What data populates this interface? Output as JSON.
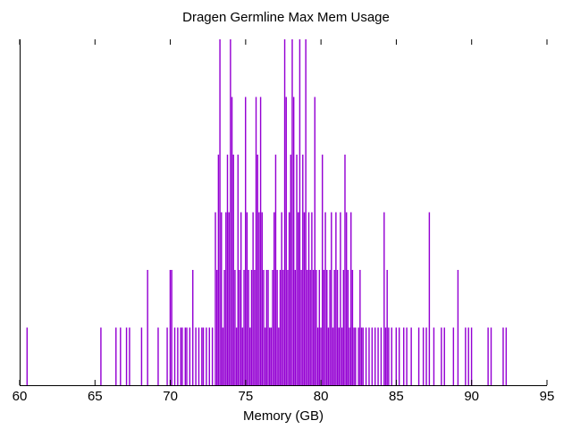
{
  "chart_data": {
    "type": "bar",
    "title": "Dragen Germline Max Mem Usage",
    "xlabel": "Memory (GB)",
    "ylabel": "",
    "xlim": [
      60,
      95
    ],
    "ylim": [
      0,
      6
    ],
    "xticks": [
      "60",
      "65",
      "70",
      "75",
      "80",
      "85",
      "90",
      "95"
    ],
    "grid": false,
    "legend": "none",
    "bar_color": "#9400d3",
    "bin_width_gb": 0.1,
    "bars": [
      {
        "x": 60.5,
        "y": 1
      },
      {
        "x": 65.4,
        "y": 1
      },
      {
        "x": 66.4,
        "y": 1
      },
      {
        "x": 66.7,
        "y": 1
      },
      {
        "x": 67.1,
        "y": 1
      },
      {
        "x": 67.3,
        "y": 1
      },
      {
        "x": 68.1,
        "y": 1
      },
      {
        "x": 68.5,
        "y": 2
      },
      {
        "x": 69.2,
        "y": 1
      },
      {
        "x": 69.8,
        "y": 1
      },
      {
        "x": 70.0,
        "y": 2
      },
      {
        "x": 70.1,
        "y": 2
      },
      {
        "x": 70.3,
        "y": 1
      },
      {
        "x": 70.5,
        "y": 1
      },
      {
        "x": 70.7,
        "y": 1
      },
      {
        "x": 70.8,
        "y": 1
      },
      {
        "x": 71.0,
        "y": 1
      },
      {
        "x": 71.1,
        "y": 1
      },
      {
        "x": 71.3,
        "y": 1
      },
      {
        "x": 71.5,
        "y": 2
      },
      {
        "x": 71.7,
        "y": 1
      },
      {
        "x": 71.9,
        "y": 1
      },
      {
        "x": 72.1,
        "y": 1
      },
      {
        "x": 72.2,
        "y": 1
      },
      {
        "x": 72.4,
        "y": 1
      },
      {
        "x": 72.6,
        "y": 1
      },
      {
        "x": 72.8,
        "y": 1
      },
      {
        "x": 73.0,
        "y": 3
      },
      {
        "x": 73.1,
        "y": 2
      },
      {
        "x": 73.2,
        "y": 4
      },
      {
        "x": 73.3,
        "y": 6
      },
      {
        "x": 73.4,
        "y": 3
      },
      {
        "x": 73.5,
        "y": 1
      },
      {
        "x": 73.6,
        "y": 2
      },
      {
        "x": 73.7,
        "y": 3
      },
      {
        "x": 73.8,
        "y": 4
      },
      {
        "x": 73.9,
        "y": 3
      },
      {
        "x": 74.0,
        "y": 6
      },
      {
        "x": 74.1,
        "y": 5
      },
      {
        "x": 74.2,
        "y": 4
      },
      {
        "x": 74.3,
        "y": 2
      },
      {
        "x": 74.4,
        "y": 1
      },
      {
        "x": 74.5,
        "y": 4
      },
      {
        "x": 74.6,
        "y": 2
      },
      {
        "x": 74.7,
        "y": 3
      },
      {
        "x": 74.8,
        "y": 1
      },
      {
        "x": 74.9,
        "y": 2
      },
      {
        "x": 75.0,
        "y": 5
      },
      {
        "x": 75.1,
        "y": 3
      },
      {
        "x": 75.2,
        "y": 2
      },
      {
        "x": 75.3,
        "y": 1
      },
      {
        "x": 75.4,
        "y": 2
      },
      {
        "x": 75.5,
        "y": 3
      },
      {
        "x": 75.6,
        "y": 2
      },
      {
        "x": 75.7,
        "y": 5
      },
      {
        "x": 75.8,
        "y": 4
      },
      {
        "x": 75.9,
        "y": 3
      },
      {
        "x": 76.0,
        "y": 5
      },
      {
        "x": 76.1,
        "y": 3
      },
      {
        "x": 76.2,
        "y": 2
      },
      {
        "x": 76.3,
        "y": 1
      },
      {
        "x": 76.4,
        "y": 2
      },
      {
        "x": 76.5,
        "y": 2
      },
      {
        "x": 76.6,
        "y": 1
      },
      {
        "x": 76.7,
        "y": 1
      },
      {
        "x": 76.8,
        "y": 2
      },
      {
        "x": 76.9,
        "y": 3
      },
      {
        "x": 77.0,
        "y": 4
      },
      {
        "x": 77.1,
        "y": 2
      },
      {
        "x": 77.2,
        "y": 1
      },
      {
        "x": 77.3,
        "y": 2
      },
      {
        "x": 77.4,
        "y": 3
      },
      {
        "x": 77.5,
        "y": 2
      },
      {
        "x": 77.6,
        "y": 6
      },
      {
        "x": 77.7,
        "y": 5
      },
      {
        "x": 77.8,
        "y": 2
      },
      {
        "x": 77.9,
        "y": 3
      },
      {
        "x": 78.0,
        "y": 4
      },
      {
        "x": 78.1,
        "y": 6
      },
      {
        "x": 78.2,
        "y": 5
      },
      {
        "x": 78.3,
        "y": 2
      },
      {
        "x": 78.4,
        "y": 4
      },
      {
        "x": 78.5,
        "y": 3
      },
      {
        "x": 78.6,
        "y": 6
      },
      {
        "x": 78.7,
        "y": 2
      },
      {
        "x": 78.8,
        "y": 4
      },
      {
        "x": 78.9,
        "y": 3
      },
      {
        "x": 79.0,
        "y": 6
      },
      {
        "x": 79.1,
        "y": 2
      },
      {
        "x": 79.2,
        "y": 3
      },
      {
        "x": 79.3,
        "y": 2
      },
      {
        "x": 79.4,
        "y": 3
      },
      {
        "x": 79.5,
        "y": 2
      },
      {
        "x": 79.6,
        "y": 5
      },
      {
        "x": 79.7,
        "y": 2
      },
      {
        "x": 79.8,
        "y": 1
      },
      {
        "x": 79.9,
        "y": 2
      },
      {
        "x": 80.0,
        "y": 1
      },
      {
        "x": 80.1,
        "y": 4
      },
      {
        "x": 80.2,
        "y": 2
      },
      {
        "x": 80.3,
        "y": 3
      },
      {
        "x": 80.4,
        "y": 2
      },
      {
        "x": 80.5,
        "y": 1
      },
      {
        "x": 80.6,
        "y": 2
      },
      {
        "x": 80.7,
        "y": 3
      },
      {
        "x": 80.8,
        "y": 1
      },
      {
        "x": 80.9,
        "y": 2
      },
      {
        "x": 81.0,
        "y": 3
      },
      {
        "x": 81.1,
        "y": 2
      },
      {
        "x": 81.2,
        "y": 1
      },
      {
        "x": 81.3,
        "y": 3
      },
      {
        "x": 81.4,
        "y": 1
      },
      {
        "x": 81.5,
        "y": 2
      },
      {
        "x": 81.6,
        "y": 4
      },
      {
        "x": 81.7,
        "y": 3
      },
      {
        "x": 81.8,
        "y": 2
      },
      {
        "x": 81.9,
        "y": 1
      },
      {
        "x": 82.0,
        "y": 3
      },
      {
        "x": 82.1,
        "y": 2
      },
      {
        "x": 82.2,
        "y": 1
      },
      {
        "x": 82.3,
        "y": 1
      },
      {
        "x": 82.5,
        "y": 1
      },
      {
        "x": 82.6,
        "y": 2
      },
      {
        "x": 82.7,
        "y": 1
      },
      {
        "x": 82.8,
        "y": 1
      },
      {
        "x": 83.0,
        "y": 1
      },
      {
        "x": 83.2,
        "y": 1
      },
      {
        "x": 83.4,
        "y": 1
      },
      {
        "x": 83.6,
        "y": 1
      },
      {
        "x": 83.8,
        "y": 1
      },
      {
        "x": 84.0,
        "y": 1
      },
      {
        "x": 84.2,
        "y": 3
      },
      {
        "x": 84.3,
        "y": 1
      },
      {
        "x": 84.4,
        "y": 2
      },
      {
        "x": 84.5,
        "y": 1
      },
      {
        "x": 84.7,
        "y": 1
      },
      {
        "x": 85.0,
        "y": 1
      },
      {
        "x": 85.2,
        "y": 1
      },
      {
        "x": 85.5,
        "y": 1
      },
      {
        "x": 85.7,
        "y": 1
      },
      {
        "x": 86.0,
        "y": 1
      },
      {
        "x": 86.5,
        "y": 1
      },
      {
        "x": 86.8,
        "y": 1
      },
      {
        "x": 87.0,
        "y": 1
      },
      {
        "x": 87.2,
        "y": 3
      },
      {
        "x": 87.5,
        "y": 1
      },
      {
        "x": 88.0,
        "y": 1
      },
      {
        "x": 88.2,
        "y": 1
      },
      {
        "x": 88.8,
        "y": 1
      },
      {
        "x": 89.1,
        "y": 2
      },
      {
        "x": 89.6,
        "y": 1
      },
      {
        "x": 89.8,
        "y": 1
      },
      {
        "x": 90.0,
        "y": 1
      },
      {
        "x": 91.1,
        "y": 1
      },
      {
        "x": 91.3,
        "y": 1
      },
      {
        "x": 92.1,
        "y": 1
      },
      {
        "x": 92.3,
        "y": 1
      }
    ]
  }
}
